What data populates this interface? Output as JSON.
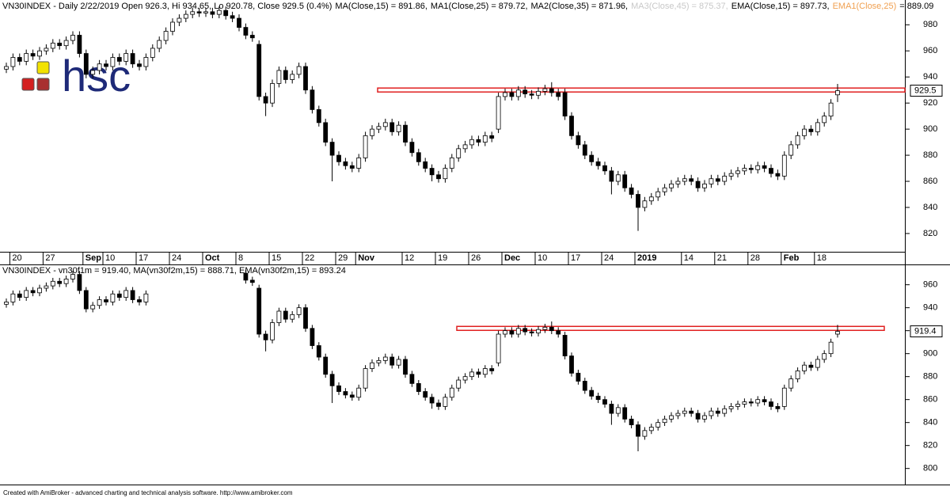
{
  "chart_data": [
    {
      "type": "candlestick",
      "header": "VN30INDEX - Daily 2/22/2019 Open 926.3, Hi 934.65, Lo 920.78, Close 929.5 (0.4%)",
      "indicators": [
        {
          "label": "MA(Close,15) = 891.86,",
          "color": "#000000"
        },
        {
          "label": "MA1(Close,25) = 879.72,",
          "color": "#000000"
        },
        {
          "label": "MA2(Close,35) = 871.96,",
          "color": "#000000"
        },
        {
          "label": "MA3(Close,45) = 875.37,",
          "color": "#c8c8c8"
        },
        {
          "label": "EMA(Close,15) = 897.73,",
          "color": "#000000"
        },
        {
          "label": "EMA1(Close,25)",
          "color": "#f0a050"
        },
        {
          "label": "= 889.09",
          "color": "#000000"
        }
      ],
      "categories": [
        null,
        "20",
        null,
        null,
        null,
        null,
        "27",
        null,
        null,
        null,
        null,
        null,
        "Sep",
        null,
        null,
        "10",
        null,
        null,
        null,
        null,
        "17",
        null,
        null,
        null,
        null,
        "24",
        null,
        null,
        null,
        null,
        "Oct",
        null,
        null,
        null,
        null,
        "8",
        null,
        null,
        null,
        null,
        "15",
        null,
        null,
        null,
        null,
        "22",
        null,
        null,
        null,
        null,
        "29",
        null,
        null,
        "Nov",
        null,
        null,
        null,
        null,
        null,
        null,
        "12",
        null,
        null,
        null,
        null,
        "19",
        null,
        null,
        null,
        null,
        "26",
        null,
        null,
        null,
        null,
        "Dec",
        null,
        null,
        null,
        null,
        "10",
        null,
        null,
        null,
        null,
        "17",
        null,
        null,
        null,
        null,
        "24",
        null,
        null,
        null,
        null,
        "2019",
        null,
        null,
        null,
        null,
        null,
        null,
        "14",
        null,
        null,
        null,
        null,
        "21",
        null,
        null,
        null,
        null,
        "28",
        null,
        null,
        null,
        null,
        "Feb",
        null,
        null,
        null,
        null,
        "18",
        null,
        null,
        null
      ],
      "open": [
        946,
        948,
        955,
        952,
        958,
        956,
        960,
        962,
        966,
        964,
        968,
        972,
        958,
        942,
        945,
        950,
        948,
        955,
        952,
        958,
        950,
        948,
        955,
        962,
        968,
        975,
        982,
        985,
        988,
        990,
        989,
        990,
        988,
        991,
        987,
        985,
        978,
        972,
        965,
        925,
        920,
        935,
        945,
        938,
        942,
        948,
        930,
        915,
        905,
        890,
        880,
        875,
        872,
        870,
        878,
        895,
        900,
        902,
        905,
        898,
        903,
        890,
        882,
        875,
        870,
        865,
        862,
        870,
        878,
        885,
        888,
        892,
        890,
        895,
        900,
        925,
        928,
        925,
        930,
        927,
        926,
        929,
        931,
        928,
        928,
        910,
        895,
        888,
        880,
        875,
        872,
        868,
        860,
        865,
        855,
        850,
        840,
        845,
        848,
        852,
        855,
        858,
        860,
        862,
        860,
        855,
        858,
        862,
        860,
        864,
        866,
        868,
        870,
        869,
        872,
        870,
        866,
        864,
        880,
        888,
        895,
        900,
        898,
        905,
        910,
        926.3
      ],
      "high": [
        951,
        958,
        958,
        961,
        961,
        963,
        965,
        969,
        969,
        971,
        975,
        975,
        961,
        948,
        953,
        953,
        958,
        958,
        961,
        961,
        953,
        958,
        965,
        971,
        978,
        985,
        988,
        991,
        993,
        993,
        993,
        993,
        994,
        994,
        990,
        988,
        981,
        975,
        968,
        928,
        938,
        948,
        948,
        945,
        951,
        951,
        933,
        918,
        908,
        893,
        883,
        878,
        875,
        881,
        898,
        903,
        905,
        908,
        908,
        906,
        906,
        893,
        885,
        878,
        873,
        868,
        873,
        881,
        888,
        891,
        895,
        895,
        898,
        898,
        928,
        931,
        931,
        933,
        933,
        930,
        932,
        934,
        936,
        931,
        931,
        913,
        898,
        891,
        883,
        878,
        875,
        871,
        868,
        868,
        858,
        853,
        848,
        851,
        855,
        858,
        861,
        863,
        865,
        865,
        863,
        861,
        865,
        865,
        867,
        869,
        871,
        873,
        873,
        875,
        875,
        873,
        869,
        883,
        891,
        898,
        903,
        903,
        908,
        913,
        923,
        934.65
      ],
      "low": [
        943,
        945,
        949,
        949,
        953,
        953,
        957,
        959,
        961,
        961,
        965,
        955,
        939,
        939,
        942,
        945,
        945,
        949,
        949,
        947,
        945,
        945,
        952,
        959,
        965,
        972,
        979,
        982,
        985,
        986,
        986,
        985,
        985,
        984,
        982,
        975,
        969,
        967,
        922,
        910,
        917,
        932,
        935,
        935,
        939,
        927,
        912,
        902,
        887,
        860,
        872,
        869,
        867,
        867,
        875,
        892,
        897,
        899,
        895,
        895,
        887,
        879,
        872,
        867,
        860,
        859,
        859,
        867,
        875,
        882,
        885,
        887,
        887,
        890,
        897,
        922,
        922,
        922,
        924,
        923,
        923,
        926,
        925,
        922,
        907,
        892,
        885,
        877,
        872,
        869,
        865,
        850,
        857,
        852,
        847,
        822,
        837,
        842,
        845,
        849,
        852,
        855,
        857,
        857,
        852,
        852,
        855,
        857,
        857,
        861,
        863,
        865,
        866,
        866,
        867,
        863,
        861,
        861,
        877,
        885,
        892,
        895,
        895,
        902,
        907,
        920.78
      ],
      "close": [
        948,
        955,
        952,
        958,
        956,
        960,
        962,
        966,
        964,
        968,
        972,
        958,
        942,
        945,
        950,
        948,
        955,
        952,
        958,
        950,
        948,
        955,
        962,
        968,
        975,
        982,
        985,
        988,
        990,
        989,
        990,
        988,
        991,
        987,
        985,
        978,
        972,
        970,
        925,
        920,
        935,
        945,
        938,
        942,
        948,
        930,
        915,
        905,
        890,
        880,
        875,
        872,
        870,
        878,
        895,
        900,
        902,
        905,
        898,
        903,
        890,
        882,
        875,
        870,
        865,
        862,
        870,
        878,
        885,
        888,
        892,
        890,
        895,
        893,
        925,
        928,
        925,
        930,
        927,
        926,
        929,
        931,
        928,
        925,
        910,
        895,
        888,
        880,
        875,
        872,
        868,
        860,
        865,
        855,
        850,
        840,
        845,
        848,
        852,
        855,
        858,
        860,
        862,
        860,
        855,
        858,
        862,
        860,
        864,
        866,
        868,
        870,
        869,
        872,
        870,
        866,
        864,
        880,
        888,
        895,
        900,
        898,
        905,
        910,
        920,
        929.5
      ],
      "resistance": 930,
      "resistance_color": "#e02020",
      "ylim": [
        806,
        999
      ],
      "yticks": [
        820,
        840,
        860,
        880,
        900,
        920,
        940,
        960,
        980
      ]
    },
    {
      "type": "candlestick",
      "header": "VN30INDEX - vn30f1m = 919.40, MA(vn30f2m,15) = 888.71, EMA(vn30f2m,15) = 893.24",
      "open": [
        943,
        945,
        952,
        949,
        955,
        953,
        957,
        959,
        963,
        961,
        965,
        969,
        955,
        939,
        942,
        947,
        945,
        952,
        949,
        955,
        947,
        945,
        null,
        null,
        null,
        null,
        null,
        null,
        null,
        null,
        null,
        null,
        null,
        null,
        null,
        null,
        970,
        964,
        957,
        917,
        912,
        927,
        937,
        930,
        934,
        940,
        922,
        907,
        897,
        882,
        872,
        867,
        864,
        862,
        870,
        887,
        892,
        894,
        897,
        890,
        895,
        882,
        874,
        867,
        862,
        857,
        854,
        862,
        870,
        877,
        880,
        884,
        882,
        887,
        892,
        917,
        920,
        917,
        922,
        919,
        918,
        921,
        923,
        920,
        916,
        898,
        883,
        876,
        868,
        863,
        860,
        856,
        848,
        853,
        843,
        838,
        828,
        833,
        836,
        840,
        843,
        846,
        848,
        850,
        848,
        843,
        846,
        850,
        848,
        852,
        854,
        856,
        858,
        857,
        860,
        858,
        854,
        854,
        870,
        878,
        885,
        890,
        888,
        895,
        900,
        917
      ],
      "high": [
        948,
        955,
        955,
        958,
        958,
        960,
        962,
        966,
        966,
        968,
        972,
        972,
        958,
        945,
        950,
        950,
        955,
        955,
        958,
        958,
        950,
        955,
        null,
        null,
        null,
        null,
        null,
        null,
        null,
        null,
        null,
        null,
        null,
        null,
        null,
        null,
        973,
        967,
        960,
        920,
        930,
        940,
        940,
        937,
        943,
        943,
        925,
        910,
        900,
        885,
        875,
        870,
        867,
        873,
        890,
        895,
        897,
        900,
        900,
        898,
        898,
        885,
        877,
        870,
        865,
        860,
        865,
        873,
        880,
        883,
        887,
        887,
        890,
        890,
        920,
        923,
        923,
        925,
        925,
        922,
        924,
        926,
        928,
        923,
        919,
        901,
        886,
        879,
        871,
        866,
        863,
        859,
        856,
        856,
        846,
        841,
        836,
        839,
        843,
        846,
        849,
        851,
        853,
        853,
        851,
        849,
        853,
        853,
        855,
        857,
        859,
        861,
        861,
        863,
        863,
        861,
        857,
        873,
        881,
        888,
        893,
        893,
        898,
        903,
        913,
        925
      ],
      "low": [
        940,
        942,
        946,
        946,
        950,
        950,
        954,
        956,
        958,
        958,
        962,
        952,
        936,
        936,
        939,
        942,
        942,
        946,
        946,
        944,
        942,
        942,
        null,
        null,
        null,
        null,
        null,
        null,
        null,
        null,
        null,
        null,
        null,
        null,
        null,
        null,
        961,
        959,
        914,
        902,
        909,
        924,
        927,
        927,
        931,
        919,
        904,
        894,
        879,
        857,
        864,
        861,
        859,
        859,
        867,
        884,
        889,
        891,
        887,
        887,
        879,
        871,
        864,
        859,
        852,
        851,
        851,
        859,
        867,
        874,
        877,
        879,
        879,
        882,
        889,
        914,
        914,
        914,
        916,
        915,
        915,
        918,
        917,
        914,
        895,
        880,
        873,
        865,
        860,
        857,
        853,
        838,
        845,
        840,
        835,
        815,
        825,
        830,
        833,
        837,
        840,
        843,
        845,
        845,
        840,
        840,
        843,
        845,
        845,
        849,
        851,
        853,
        854,
        854,
        855,
        851,
        849,
        851,
        867,
        875,
        882,
        885,
        885,
        892,
        897,
        914
      ],
      "close": [
        945,
        952,
        949,
        955,
        953,
        957,
        959,
        963,
        961,
        965,
        969,
        955,
        939,
        942,
        947,
        945,
        952,
        949,
        955,
        947,
        945,
        952,
        null,
        null,
        null,
        null,
        null,
        null,
        null,
        null,
        null,
        null,
        null,
        null,
        null,
        null,
        964,
        962,
        917,
        912,
        927,
        937,
        930,
        934,
        940,
        922,
        907,
        897,
        882,
        872,
        867,
        864,
        862,
        870,
        887,
        892,
        894,
        897,
        890,
        895,
        882,
        874,
        867,
        862,
        857,
        854,
        862,
        870,
        877,
        880,
        884,
        882,
        887,
        885,
        917,
        920,
        917,
        922,
        919,
        918,
        921,
        923,
        920,
        917,
        898,
        883,
        876,
        868,
        863,
        860,
        856,
        848,
        853,
        843,
        838,
        828,
        833,
        836,
        840,
        843,
        846,
        848,
        850,
        848,
        843,
        846,
        850,
        848,
        852,
        854,
        856,
        858,
        857,
        860,
        858,
        854,
        852,
        870,
        878,
        885,
        890,
        888,
        895,
        900,
        910,
        919.4
      ],
      "resistance": 922,
      "resistance_color": "#e02020",
      "ylim": [
        786,
        977
      ],
      "yticks": [
        800,
        820,
        840,
        860,
        880,
        900,
        920,
        940,
        960
      ]
    }
  ],
  "logo": "hsc",
  "footer": "Created with AmiBroker - advanced charting and technical analysis software. http://www.amibroker.com"
}
